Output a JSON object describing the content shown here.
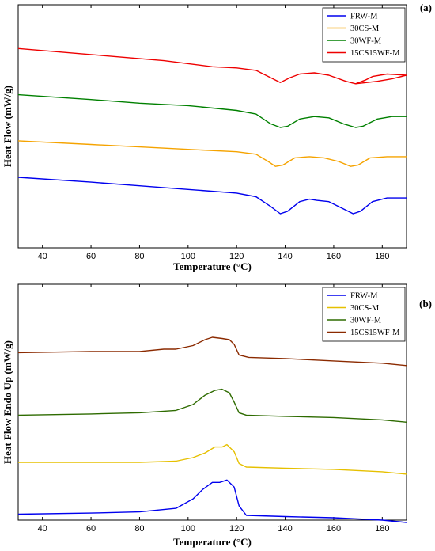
{
  "chart_data": [
    {
      "id": "a",
      "type": "line",
      "panel_label": "(a)",
      "title": "",
      "xlabel": "Temperature (°C)",
      "ylabel": "Heat Flow (mW/g)",
      "xlim": [
        30,
        190
      ],
      "xticks": [
        40,
        60,
        80,
        100,
        120,
        140,
        160,
        180
      ],
      "y_tick_labels": false,
      "legend_position": "top-right",
      "grid": false,
      "series": [
        {
          "name": "FRW-M",
          "color": "#0000ee",
          "points": [
            [
              30,
              0.29
            ],
            [
              60,
              0.27
            ],
            [
              80,
              0.255
            ],
            [
              100,
              0.24
            ],
            [
              120,
              0.225
            ],
            [
              128,
              0.21
            ],
            [
              134,
              0.17
            ],
            [
              138,
              0.14
            ],
            [
              141,
              0.15
            ],
            [
              146,
              0.19
            ],
            [
              150,
              0.2
            ],
            [
              153,
              0.195
            ],
            [
              158,
              0.19
            ],
            [
              164,
              0.16
            ],
            [
              168,
              0.14
            ],
            [
              171,
              0.15
            ],
            [
              176,
              0.19
            ],
            [
              182,
              0.205
            ],
            [
              190,
              0.205
            ]
          ]
        },
        {
          "name": "30CS-M",
          "color": "#f5a300",
          "points": [
            [
              30,
              0.44
            ],
            [
              60,
              0.425
            ],
            [
              80,
              0.415
            ],
            [
              100,
              0.405
            ],
            [
              120,
              0.395
            ],
            [
              128,
              0.385
            ],
            [
              133,
              0.355
            ],
            [
              136,
              0.335
            ],
            [
              139,
              0.34
            ],
            [
              144,
              0.37
            ],
            [
              150,
              0.375
            ],
            [
              156,
              0.37
            ],
            [
              162,
              0.355
            ],
            [
              167,
              0.335
            ],
            [
              170,
              0.34
            ],
            [
              175,
              0.37
            ],
            [
              182,
              0.375
            ],
            [
              190,
              0.375
            ]
          ]
        },
        {
          "name": "30WF-M",
          "color": "#008000",
          "points": [
            [
              30,
              0.63
            ],
            [
              60,
              0.61
            ],
            [
              80,
              0.595
            ],
            [
              100,
              0.585
            ],
            [
              120,
              0.565
            ],
            [
              128,
              0.55
            ],
            [
              134,
              0.51
            ],
            [
              138,
              0.495
            ],
            [
              141,
              0.5
            ],
            [
              146,
              0.53
            ],
            [
              152,
              0.54
            ],
            [
              158,
              0.535
            ],
            [
              164,
              0.51
            ],
            [
              169,
              0.495
            ],
            [
              172,
              0.5
            ],
            [
              178,
              0.53
            ],
            [
              184,
              0.54
            ],
            [
              190,
              0.54
            ]
          ]
        },
        {
          "name": "15CS15WF-M",
          "color": "#ee0000",
          "points": [
            [
              30,
              0.82
            ],
            [
              60,
              0.795
            ],
            [
              90,
              0.77
            ],
            [
              110,
              0.745
            ],
            [
              120,
              0.74
            ],
            [
              128,
              0.73
            ],
            [
              134,
              0.7
            ],
            [
              138,
              0.68
            ],
            [
              142,
              0.7
            ],
            [
              146,
              0.715
            ],
            [
              152,
              0.72
            ],
            [
              158,
              0.71
            ],
            [
              165,
              0.685
            ],
            [
              169,
              0.675
            ],
            [
              173,
              0.69
            ],
            [
              176,
              0.705
            ],
            [
              182,
              0.715
            ],
            [
              190,
              0.71
            ]
          ]
        },
        {
          "name": "",
          "color": "#ee0000",
          "points": [
            [
              169,
              0.675
            ],
            [
              178,
              0.685
            ],
            [
              184,
              0.695
            ],
            [
              190,
              0.71
            ]
          ]
        }
      ]
    },
    {
      "id": "b",
      "type": "line",
      "panel_label": "(b)",
      "title": "",
      "xlabel": "Temperature (°C)",
      "ylabel": "Heat Flow Endo Up (mW/g)",
      "xlim": [
        30,
        190
      ],
      "xticks": [
        40,
        60,
        80,
        100,
        120,
        140,
        160,
        180
      ],
      "y_tick_labels": false,
      "legend_position": "top-right",
      "grid": false,
      "series": [
        {
          "name": "FRW-M",
          "color": "#0000ee",
          "points": [
            [
              30,
              0.025
            ],
            [
              60,
              0.03
            ],
            [
              80,
              0.035
            ],
            [
              95,
              0.05
            ],
            [
              102,
              0.09
            ],
            [
              106,
              0.13
            ],
            [
              110,
              0.16
            ],
            [
              113,
              0.16
            ],
            [
              116,
              0.17
            ],
            [
              119,
              0.14
            ],
            [
              121,
              0.06
            ],
            [
              124,
              0.02
            ],
            [
              140,
              0.015
            ],
            [
              160,
              0.01
            ],
            [
              180,
              0.0
            ],
            [
              190,
              -0.01
            ]
          ]
        },
        {
          "name": "30CS-M",
          "color": "#e6c000",
          "points": [
            [
              30,
              0.245
            ],
            [
              60,
              0.245
            ],
            [
              80,
              0.245
            ],
            [
              95,
              0.25
            ],
            [
              102,
              0.265
            ],
            [
              107,
              0.285
            ],
            [
              111,
              0.31
            ],
            [
              114,
              0.31
            ],
            [
              116,
              0.32
            ],
            [
              119,
              0.29
            ],
            [
              121,
              0.24
            ],
            [
              124,
              0.225
            ],
            [
              140,
              0.22
            ],
            [
              160,
              0.215
            ],
            [
              180,
              0.205
            ],
            [
              190,
              0.195
            ]
          ]
        },
        {
          "name": "30WF-M",
          "color": "#2e6b00",
          "points": [
            [
              30,
              0.445
            ],
            [
              60,
              0.45
            ],
            [
              80,
              0.455
            ],
            [
              95,
              0.465
            ],
            [
              102,
              0.49
            ],
            [
              107,
              0.53
            ],
            [
              111,
              0.55
            ],
            [
              114,
              0.555
            ],
            [
              117,
              0.54
            ],
            [
              119,
              0.5
            ],
            [
              121,
              0.455
            ],
            [
              124,
              0.445
            ],
            [
              140,
              0.44
            ],
            [
              160,
              0.435
            ],
            [
              180,
              0.425
            ],
            [
              190,
              0.415
            ]
          ]
        },
        {
          "name": "15CS15WF-M",
          "color": "#8b2a00",
          "points": [
            [
              30,
              0.71
            ],
            [
              60,
              0.715
            ],
            [
              80,
              0.715
            ],
            [
              90,
              0.725
            ],
            [
              95,
              0.725
            ],
            [
              102,
              0.74
            ],
            [
              107,
              0.765
            ],
            [
              110,
              0.775
            ],
            [
              114,
              0.77
            ],
            [
              117,
              0.765
            ],
            [
              119,
              0.745
            ],
            [
              121,
              0.7
            ],
            [
              125,
              0.69
            ],
            [
              140,
              0.685
            ],
            [
              160,
              0.675
            ],
            [
              180,
              0.665
            ],
            [
              190,
              0.655
            ]
          ]
        }
      ]
    }
  ]
}
